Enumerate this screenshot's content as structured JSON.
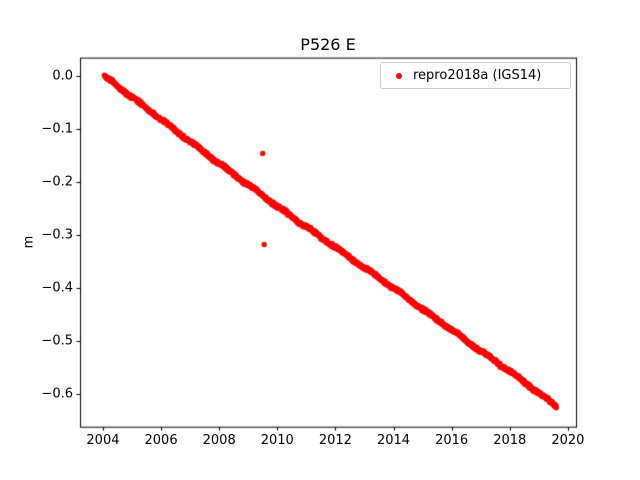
{
  "figure": {
    "background": "#ffffff"
  },
  "chart_data": {
    "type": "scatter",
    "title": "P526 E",
    "xlabel": "",
    "ylabel": "m",
    "xlim": [
      2003.21,
      2020.28
    ],
    "ylim": [
      -0.6626,
      0.0347
    ],
    "grid": false,
    "xticks": {
      "values": [
        2004,
        2006,
        2008,
        2010,
        2012,
        2014,
        2016,
        2018,
        2020
      ],
      "labels": [
        "2004",
        "2006",
        "2008",
        "2010",
        "2012",
        "2014",
        "2016",
        "2018",
        "2020"
      ]
    },
    "yticks": {
      "values": [
        0.0,
        -0.1,
        -0.2,
        -0.3,
        -0.4,
        -0.5,
        -0.6
      ],
      "labels": [
        "0.0",
        "−0.1",
        "−0.2",
        "−0.3",
        "−0.4",
        "−0.5",
        "−0.6"
      ]
    },
    "legend": {
      "location": "upper right",
      "entries": [
        {
          "label": "repro2018a (IGS14)",
          "marker": "dot",
          "color": "#ff0000"
        }
      ]
    },
    "series": [
      {
        "name": "repro2018a (IGS14)",
        "color": "#ff0000",
        "marker_radius_px": 2.7,
        "point_spacing_years": 0.01,
        "scatter_sigma_m": 0.0022,
        "wiggle_amplitude_m": 0.0015,
        "trend_anchors": {
          "x": [
            2004.05,
            2005,
            2006,
            2007,
            2008,
            2009,
            2010,
            2011,
            2012,
            2013,
            2014,
            2015,
            2016,
            2017,
            2018,
            2019,
            2019.6
          ],
          "y": [
            0.0,
            -0.04,
            -0.082,
            -0.124,
            -0.165,
            -0.205,
            -0.246,
            -0.285,
            -0.323,
            -0.362,
            -0.4,
            -0.44,
            -0.479,
            -0.519,
            -0.557,
            -0.598,
            -0.623
          ]
        },
        "outliers": [
          {
            "x": 2009.5,
            "y": -0.146
          },
          {
            "x": 2009.55,
            "y": -0.318
          }
        ]
      }
    ]
  }
}
